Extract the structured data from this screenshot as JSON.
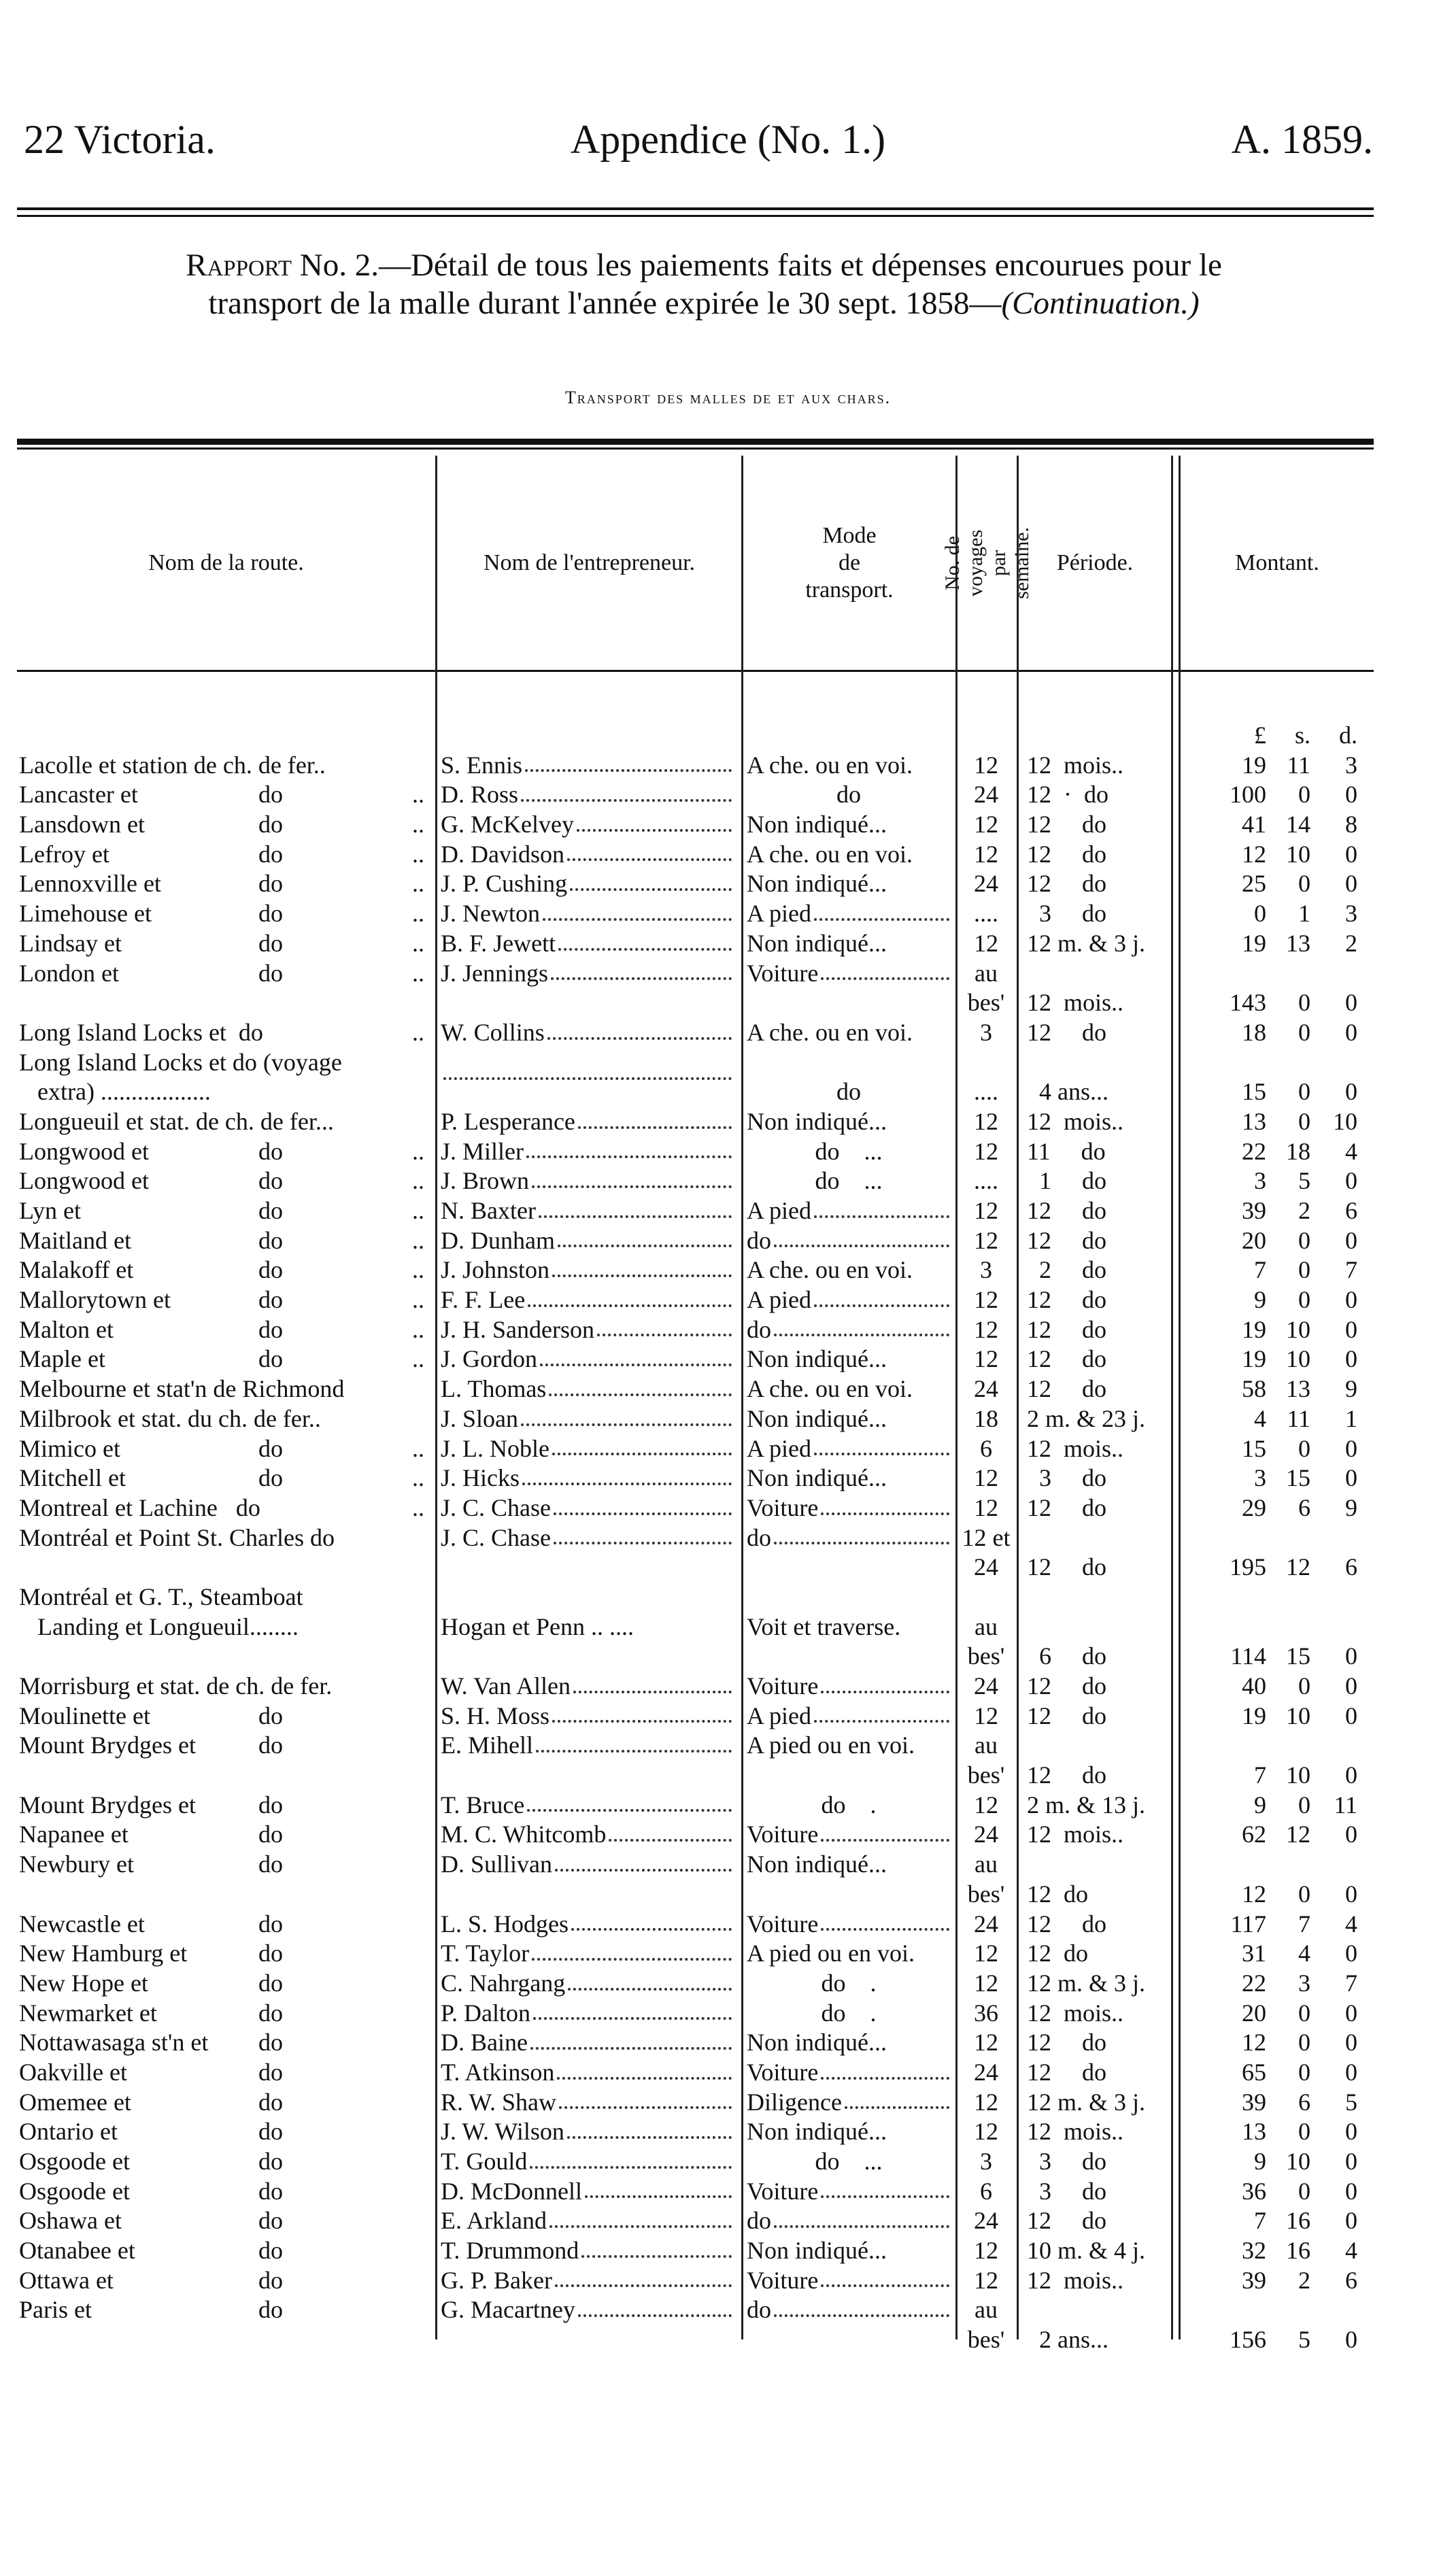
{
  "header": {
    "left": "22 Victoria.",
    "center": "Appendice (No. 1.)",
    "right": "A. 1859."
  },
  "report": {
    "label": "Rapport",
    "line1": " No. 2.—Détail de tous les paiements faits et dépenses encourues pour le",
    "line2": "transport de la malle durant l'année expirée le 30 sept. 1858—",
    "continuation": "(Continuation.)"
  },
  "section_title": "Transport des malles de et aux chars.",
  "columns": {
    "route": "Nom de la route.",
    "contractor": "Nom de l'entrepreneur.",
    "mode": "Mode\nde\ntransport.",
    "voyages": "No. de voyages par semaine.",
    "period": "Période.",
    "amount": "Montant."
  },
  "units": {
    "l": "£",
    "s": "s.",
    "d": "d."
  },
  "rows": [
    {
      "route": "Lacolle et station de ch. de fer..",
      "con": "S. Ennis",
      "mode": "A che. ou en voi.",
      "voy": "12",
      "per": "12  mois..",
      "l": "19",
      "s": "11",
      "d": "3"
    },
    {
      "route": "Lancaster et",
      "do": "do",
      "dd": "..",
      "con": "D. Ross",
      "mode": "do",
      "modec": true,
      "voy": "24",
      "per": "12  ·  do",
      "l": "100",
      "s": "0",
      "d": "0"
    },
    {
      "route": "Lansdown et",
      "do": "do",
      "dd": "..",
      "con": "G. McKelvey",
      "mode": "Non indiqué...",
      "voy": "12",
      "per": "12     do",
      "l": "41",
      "s": "14",
      "d": "8"
    },
    {
      "route": "Lefroy et",
      "do": "do",
      "dd": "..",
      "con": "D. Davidson",
      "mode": "A che. ou en voi.",
      "voy": "12",
      "per": "12     do",
      "l": "12",
      "s": "10",
      "d": "0"
    },
    {
      "route": "Lennoxville et",
      "do": "do",
      "dd": "..",
      "con": "J. P. Cushing",
      "mode": "Non indiqué...",
      "voy": "24",
      "per": "12     do",
      "l": "25",
      "s": "0",
      "d": "0"
    },
    {
      "route": "Limehouse et",
      "do": "do",
      "dd": "..",
      "con": "J. Newton",
      "mode": "A pied",
      "lead": true,
      "voy": "....",
      "per": "  3     do",
      "l": "0",
      "s": "1",
      "d": "3"
    },
    {
      "route": "Lindsay et",
      "do": "do",
      "dd": "..",
      "con": "B. F. Jewett",
      "mode": "Non indiqué...",
      "voy": "12",
      "per": "12 m. & 3 j.",
      "l": "19",
      "s": "13",
      "d": "2"
    },
    {
      "route": "London et",
      "do": "do",
      "dd": "..",
      "con": "J. Jennings",
      "mode": "Voiture",
      "lead": true,
      "voy": "au"
    },
    {
      "voy": "bes'",
      "per": "12  mois..",
      "l": "143",
      "s": "0",
      "d": "0"
    },
    {
      "route": "Long Island Locks et  do",
      "dd": "..",
      "con": "W. Collins",
      "mode": "A che. ou en voi.",
      "voy": "3",
      "per": "12     do",
      "l": "18",
      "s": "0",
      "d": "0"
    },
    {
      "route": "Long Island Locks et do (voyage"
    },
    {
      "route": "   extra) ..................",
      "con": "",
      "mode": "do",
      "modec": true,
      "voy": "....",
      "per": "  4 ans...",
      "l": "15",
      "s": "0",
      "d": "0"
    },
    {
      "route": "Longueuil et stat. de ch. de fer...",
      "con": "P. Lesperance",
      "mode": "Non indiqué...",
      "voy": "12",
      "per": "12  mois..",
      "l": "13",
      "s": "0",
      "d": "10"
    },
    {
      "route": "Longwood et",
      "do": "do",
      "dd": "..",
      "con": "J. Miller",
      "mode": "do    ...",
      "modec": true,
      "voy": "12",
      "per": "11     do",
      "l": "22",
      "s": "18",
      "d": "4"
    },
    {
      "route": "Longwood et",
      "do": "do",
      "dd": "..",
      "con": "J. Brown",
      "mode": "do    ...",
      "modec": true,
      "voy": "....",
      "per": "  1     do",
      "l": "3",
      "s": "5",
      "d": "0"
    },
    {
      "route": "Lyn et",
      "do": "do",
      "dd": "..",
      "con": "N. Baxter",
      "mode": "A pied",
      "lead": true,
      "voy": "12",
      "per": "12     do",
      "l": "39",
      "s": "2",
      "d": "6"
    },
    {
      "route": "Maitland et",
      "do": "do",
      "dd": "..",
      "con": "D. Dunham",
      "mode": "do",
      "lead": true,
      "voy": "12",
      "per": "12     do",
      "l": "20",
      "s": "0",
      "d": "0"
    },
    {
      "route": "Malakoff et",
      "do": "do",
      "dd": "..",
      "con": "J. Johnston",
      "mode": "A che. ou en voi.",
      "voy": "3",
      "per": "  2     do",
      "l": "7",
      "s": "0",
      "d": "7"
    },
    {
      "route": "Mallorytown et",
      "do": "do",
      "dd": "..",
      "con": "F. F. Lee",
      "mode": "A pied",
      "lead": true,
      "voy": "12",
      "per": "12     do",
      "l": "9",
      "s": "0",
      "d": "0"
    },
    {
      "route": "Malton et",
      "do": "do",
      "dd": "..",
      "con": "J. H. Sanderson",
      "mode": "do",
      "lead": true,
      "voy": "12",
      "per": "12     do",
      "l": "19",
      "s": "10",
      "d": "0"
    },
    {
      "route": "Maple et",
      "do": "do",
      "dd": "..",
      "con": "J. Gordon",
      "mode": "Non indiqué...",
      "voy": "12",
      "per": "12     do",
      "l": "19",
      "s": "10",
      "d": "0"
    },
    {
      "route": "Melbourne et stat'n de Richmond",
      "con": "L. Thomas",
      "mode": "A che. ou en voi.",
      "voy": "24",
      "per": "12     do",
      "l": "58",
      "s": "13",
      "d": "9"
    },
    {
      "route": "Milbrook et stat. du ch. de fer..",
      "con": "J. Sloan",
      "mode": "Non indiqué...",
      "voy": "18",
      "per": "2 m. & 23 j.",
      "l": "4",
      "s": "11",
      "d": "1"
    },
    {
      "route": "Mimico et",
      "do": "do",
      "dd": "..",
      "con": "J. L. Noble",
      "mode": "A pied",
      "lead": true,
      "voy": "6",
      "per": "12  mois..",
      "l": "15",
      "s": "0",
      "d": "0"
    },
    {
      "route": "Mitchell et",
      "do": "do",
      "dd": "..",
      "con": "J. Hicks",
      "mode": "Non indiqué...",
      "voy": "12",
      "per": "  3     do",
      "l": "3",
      "s": "15",
      "d": "0"
    },
    {
      "route": "Montreal et Lachine   do",
      "dd": "..",
      "con": "J. C. Chase",
      "mode": "Voiture",
      "lead": true,
      "voy": "12",
      "per": "12     do",
      "l": "29",
      "s": "6",
      "d": "9"
    },
    {
      "route": "Montréal et Point St. Charles do",
      "con": "J. C. Chase",
      "mode": "do",
      "lead": true,
      "voy": "12 et"
    },
    {
      "voy": "24",
      "per": "12     do",
      "l": "195",
      "s": "12",
      "d": "6"
    },
    {
      "route": "Montréal et G. T., Steamboat"
    },
    {
      "route": "   Landing et Longueuil........",
      "con": "Hogan et Penn .. ....",
      "nolead": true,
      "mode": "Voit et traverse.",
      "voy": "au"
    },
    {
      "voy": "bes'",
      "per": "  6     do",
      "l": "114",
      "s": "15",
      "d": "0"
    },
    {
      "route": "Morrisburg et stat. de ch. de fer.",
      "con": "W. Van Allen",
      "mode": "Voiture",
      "lead": true,
      "voy": "24",
      "per": "12     do",
      "l": "40",
      "s": "0",
      "d": "0"
    },
    {
      "route": "Moulinette et",
      "do": "do",
      "con": "S. H. Moss",
      "mode": "A pied",
      "lead": true,
      "voy": "12",
      "per": "12     do",
      "l": "19",
      "s": "10",
      "d": "0"
    },
    {
      "route": "Mount Brydges et",
      "do": "do",
      "con": "E. Mihell",
      "mode": "A pied ou en voi.",
      "voy": "au"
    },
    {
      "voy": "bes'",
      "per": "12     do",
      "l": "7",
      "s": "10",
      "d": "0"
    },
    {
      "route": "Mount Brydges et",
      "do": "do",
      "con": "T. Bruce",
      "mode": "do    .",
      "modec": true,
      "voy": "12",
      "per": "2 m. & 13 j.",
      "l": "9",
      "s": "0",
      "d": "11"
    },
    {
      "route": "Napanee et",
      "do": "do",
      "con": "M. C. Whitcomb",
      "mode": "Voiture",
      "lead": true,
      "voy": "24",
      "per": "12  mois..",
      "l": "62",
      "s": "12",
      "d": "0"
    },
    {
      "route": "Newbury et",
      "do": "do",
      "con": "D. Sullivan",
      "mode": "Non indiqué...",
      "voy": "au"
    },
    {
      "voy": "bes'",
      "per": "12  do",
      "l": "12",
      "s": "0",
      "d": "0"
    },
    {
      "route": "Newcastle et",
      "do": "do",
      "con": "L. S. Hodges",
      "mode": "Voiture",
      "lead": true,
      "voy": "24",
      "per": "12     do",
      "l": "117",
      "s": "7",
      "d": "4"
    },
    {
      "route": "New Hamburg et",
      "do": "do",
      "con": "T. Taylor",
      "mode": "A pied ou en voi.",
      "voy": "12",
      "per": "12  do",
      "l": "31",
      "s": "4",
      "d": "0"
    },
    {
      "route": "New Hope et",
      "do": "do",
      "con": "C. Nahrgang",
      "mode": "do    .",
      "modec": true,
      "voy": "12",
      "per": "12 m. & 3 j.",
      "l": "22",
      "s": "3",
      "d": "7"
    },
    {
      "route": "Newmarket et",
      "do": "do",
      "con": "P. Dalton",
      "mode": "do    .",
      "modec": true,
      "voy": "36",
      "per": "12  mois..",
      "l": "20",
      "s": "0",
      "d": "0"
    },
    {
      "route": "Nottawasaga st'n et",
      "do": "do",
      "con": "D. Baine",
      "mode": "Non indiqué...",
      "voy": "12",
      "per": "12     do",
      "l": "12",
      "s": "0",
      "d": "0"
    },
    {
      "route": "Oakville et",
      "do": "do",
      "con": "T. Atkinson",
      "mode": "Voiture",
      "lead": true,
      "voy": "24",
      "per": "12     do",
      "l": "65",
      "s": "0",
      "d": "0"
    },
    {
      "route": "Omemee et",
      "do": "do",
      "con": "R. W. Shaw",
      "mode": "Diligence",
      "lead": true,
      "voy": "12",
      "per": "12 m. & 3 j.",
      "l": "39",
      "s": "6",
      "d": "5"
    },
    {
      "route": "Ontario et",
      "do": "do",
      "con": "J. W. Wilson",
      "mode": "Non indiqué...",
      "voy": "12",
      "per": "12  mois..",
      "l": "13",
      "s": "0",
      "d": "0"
    },
    {
      "route": "Osgoode et",
      "do": "do",
      "con": "T. Gould",
      "mode": "do    ...",
      "modec": true,
      "voy": "3",
      "per": "  3     do",
      "l": "9",
      "s": "10",
      "d": "0"
    },
    {
      "route": "Osgoode et",
      "do": "do",
      "con": "D. McDonnell",
      "mode": "Voiture",
      "lead": true,
      "voy": "6",
      "per": "  3     do",
      "l": "36",
      "s": "0",
      "d": "0"
    },
    {
      "route": "Oshawa et",
      "do": "do",
      "con": "E. Arkland",
      "mode": "do",
      "lead": true,
      "voy": "24",
      "per": "12     do",
      "l": "7",
      "s": "16",
      "d": "0"
    },
    {
      "route": "Otanabee et",
      "do": "do",
      "con": "T. Drummond",
      "mode": "Non indiqué...",
      "voy": "12",
      "per": "10 m. & 4 j.",
      "l": "32",
      "s": "16",
      "d": "4"
    },
    {
      "route": "Ottawa et",
      "do": "do",
      "con": "G. P. Baker",
      "mode": "Voiture",
      "lead": true,
      "voy": "12",
      "per": "12  mois..",
      "l": "39",
      "s": "2",
      "d": "6"
    },
    {
      "route": "Paris et",
      "do": "do",
      "con": "G. Macartney",
      "mode": "do",
      "lead": true,
      "voy": "au"
    },
    {
      "voy": "bes'",
      "per": "  2 ans...",
      "l": "156",
      "s": "5",
      "d": "0"
    }
  ]
}
